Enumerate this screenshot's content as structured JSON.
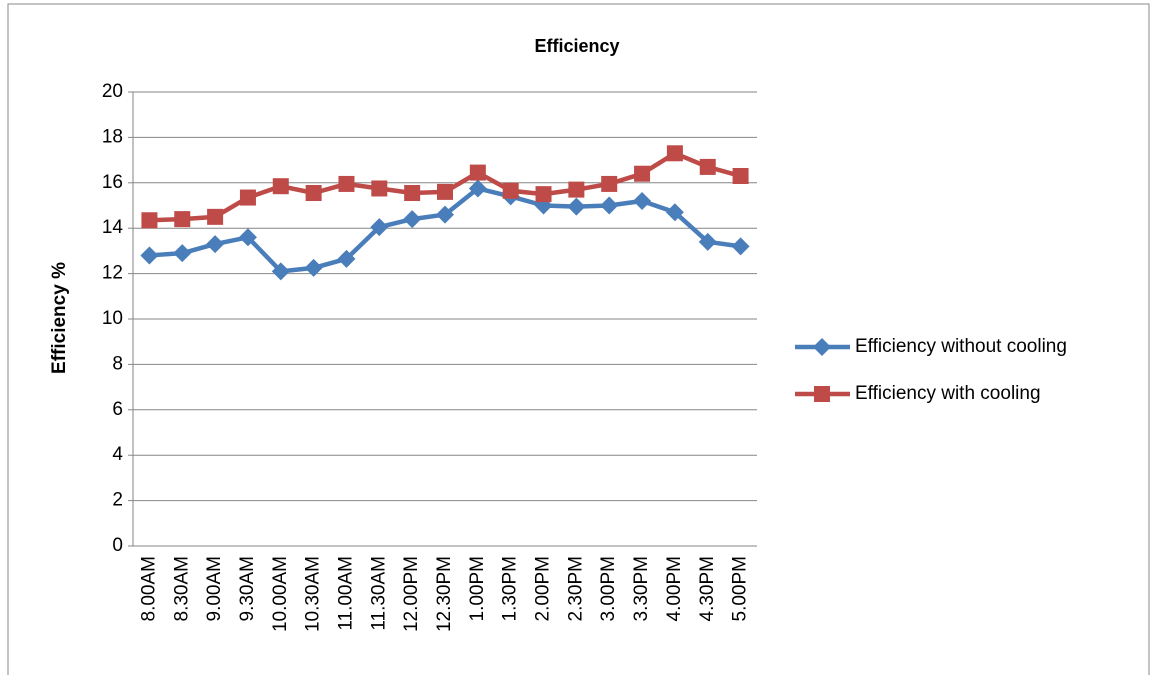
{
  "chart_data": {
    "type": "line",
    "title": "Efficiency",
    "y_label": "Efficiency %",
    "categories": [
      "8.00AM",
      "8.30AM",
      "9.00AM",
      "9.30AM",
      "10.00AM",
      "10.30AM",
      "11.00AM",
      "11.30AM",
      "12.00PM",
      "12.30PM",
      "1.00PM",
      "1.30PM",
      "2.00PM",
      "2.30PM",
      "3.00PM",
      "3.30PM",
      "4.00PM",
      "4.30PM",
      "5.00PM"
    ],
    "series": [
      {
        "name": "Efficiency without cooling",
        "color": "#4a7ebb",
        "marker": "diamond",
        "values": [
          12.8,
          12.9,
          13.3,
          13.6,
          12.1,
          12.25,
          12.65,
          14.05,
          14.4,
          14.6,
          15.75,
          15.4,
          15.0,
          14.95,
          15.0,
          15.2,
          14.7,
          13.4,
          13.2
        ]
      },
      {
        "name": "Efficiency with cooling",
        "color": "#be4b48",
        "marker": "square",
        "values": [
          14.35,
          14.4,
          14.5,
          15.35,
          15.85,
          15.55,
          15.95,
          15.75,
          15.55,
          15.6,
          16.45,
          15.65,
          15.5,
          15.7,
          15.95,
          16.4,
          17.3,
          16.7,
          16.3
        ]
      }
    ],
    "ylim": [
      0,
      20
    ],
    "yticks": [
      0,
      2,
      4,
      6,
      8,
      10,
      12,
      14,
      16,
      18,
      20
    ],
    "grid": true,
    "legend": "right"
  }
}
